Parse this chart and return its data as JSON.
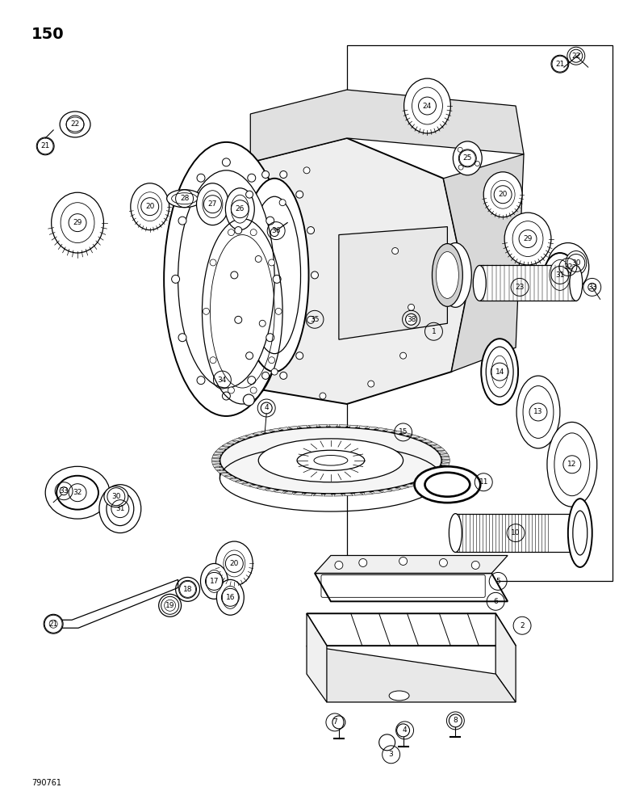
{
  "page_number": "150",
  "part_number": "790761",
  "bg": "#ffffff",
  "fw": 7.72,
  "fh": 10.0,
  "dpi": 100
}
